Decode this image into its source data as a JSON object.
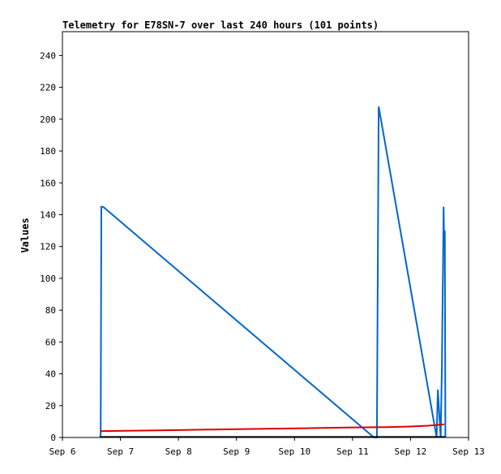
{
  "chart_data": {
    "type": "line",
    "title": "Telemetry for E78SN-7 over last 240 hours (101 points)",
    "xlabel": "",
    "ylabel": "Values",
    "x_ticks": [
      "Sep 6",
      "Sep 7",
      "Sep 8",
      "Sep 9",
      "Sep 10",
      "Sep 11",
      "Sep 12",
      "Sep 13"
    ],
    "x_unit": "days since Sep 6 00:00",
    "xlim": [
      0,
      7
    ],
    "ylim": [
      0,
      255
    ],
    "y_ticks": [
      0,
      20,
      40,
      60,
      80,
      100,
      120,
      140,
      160,
      180,
      200,
      220,
      240
    ],
    "grid": false,
    "legend": "none",
    "series": [
      {
        "color": "#0066cc",
        "x": [
          0.65,
          0.66,
          0.67,
          0.7,
          5.37,
          5.42,
          5.45,
          6.45,
          6.47,
          6.52,
          6.54,
          6.55,
          6.56,
          6.57,
          6.58,
          6.59,
          6.6
        ],
        "y": [
          0,
          2,
          145,
          145,
          0,
          0,
          208,
          0,
          30,
          0,
          45,
          78,
          108,
          145,
          120,
          130,
          0
        ]
      },
      {
        "color": "#dd0000",
        "x": [
          0.65,
          1.1,
          1.9,
          2.55,
          3.4,
          4.2,
          4.9,
          5.6,
          6.0,
          6.3,
          6.58
        ],
        "y": [
          4,
          4.2,
          4.6,
          5.0,
          5.4,
          5.8,
          6.2,
          6.5,
          6.9,
          7.4,
          8.2
        ]
      },
      {
        "color": "#000000",
        "x": [
          0.65,
          6.6
        ],
        "y": [
          0.3,
          0.3
        ]
      }
    ]
  }
}
